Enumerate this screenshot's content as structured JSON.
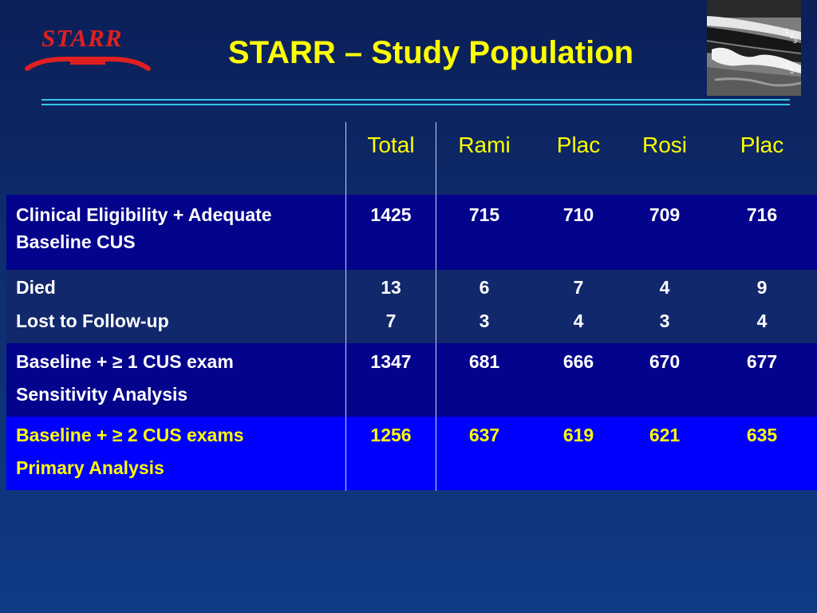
{
  "header": {
    "logo_text": "STARR",
    "title": "STARR – Study Population",
    "ultrasound_markers": [
      "1",
      "2",
      "3",
      "4",
      "5"
    ]
  },
  "table": {
    "columns": [
      "Total",
      "Rami",
      "Plac",
      "Rosi",
      "Plac"
    ],
    "rows": [
      {
        "lines": [
          "Clinical Eligibility + Adequate",
          "Baseline CUS"
        ],
        "values": [
          "1425",
          "715",
          "710",
          "709",
          "716"
        ],
        "color": "white"
      },
      {
        "lines": [
          "Died"
        ],
        "values": [
          "13",
          "6",
          "7",
          "4",
          "9"
        ],
        "color": "white"
      },
      {
        "lines": [
          "Lost to Follow-up"
        ],
        "values": [
          "7",
          "3",
          "4",
          "3",
          "4"
        ],
        "color": "white"
      },
      {
        "lines": [
          "Baseline + ≥ 1 CUS exam",
          "Sensitivity Analysis"
        ],
        "values": [
          "1347",
          "681",
          "666",
          "670",
          "677"
        ],
        "color": "white"
      },
      {
        "lines": [
          "Baseline + ≥ 2 CUS exams",
          "Primary Analysis"
        ],
        "values": [
          "1256",
          "637",
          "619",
          "621",
          "635"
        ],
        "color": "yellow"
      }
    ]
  },
  "colors": {
    "title": "#ffff00",
    "logo_red": "#e02020",
    "rule": "#33c7e6",
    "band_dark": "#03038c",
    "band_mid": "#12286c",
    "band_bright": "#0000ff"
  }
}
